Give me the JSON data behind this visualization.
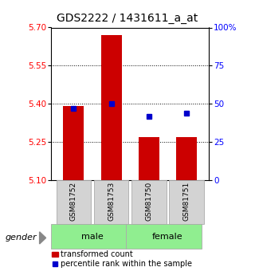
{
  "title": "GDS2222 / 1431611_a_at",
  "samples": [
    "GSM81752",
    "GSM81753",
    "GSM81750",
    "GSM81751"
  ],
  "groups": [
    "male",
    "male",
    "female",
    "female"
  ],
  "bar_values": [
    5.39,
    5.67,
    5.27,
    5.27
  ],
  "percentile_values": [
    47,
    50,
    42,
    44
  ],
  "bar_color": "#cc0000",
  "dot_color": "#0000cc",
  "bar_baseline": 5.1,
  "left_ylim": [
    5.1,
    5.7
  ],
  "left_yticks": [
    5.1,
    5.25,
    5.4,
    5.55,
    5.7
  ],
  "right_ylim": [
    0,
    100
  ],
  "right_yticks": [
    0,
    25,
    50,
    75,
    100
  ],
  "right_yticklabels": [
    "0",
    "25",
    "50",
    "75",
    "100%"
  ],
  "hline_values": [
    5.25,
    5.4,
    5.55
  ],
  "title_fontsize": 10,
  "tick_fontsize": 7.5,
  "bar_width": 0.55,
  "gender_label": "gender"
}
